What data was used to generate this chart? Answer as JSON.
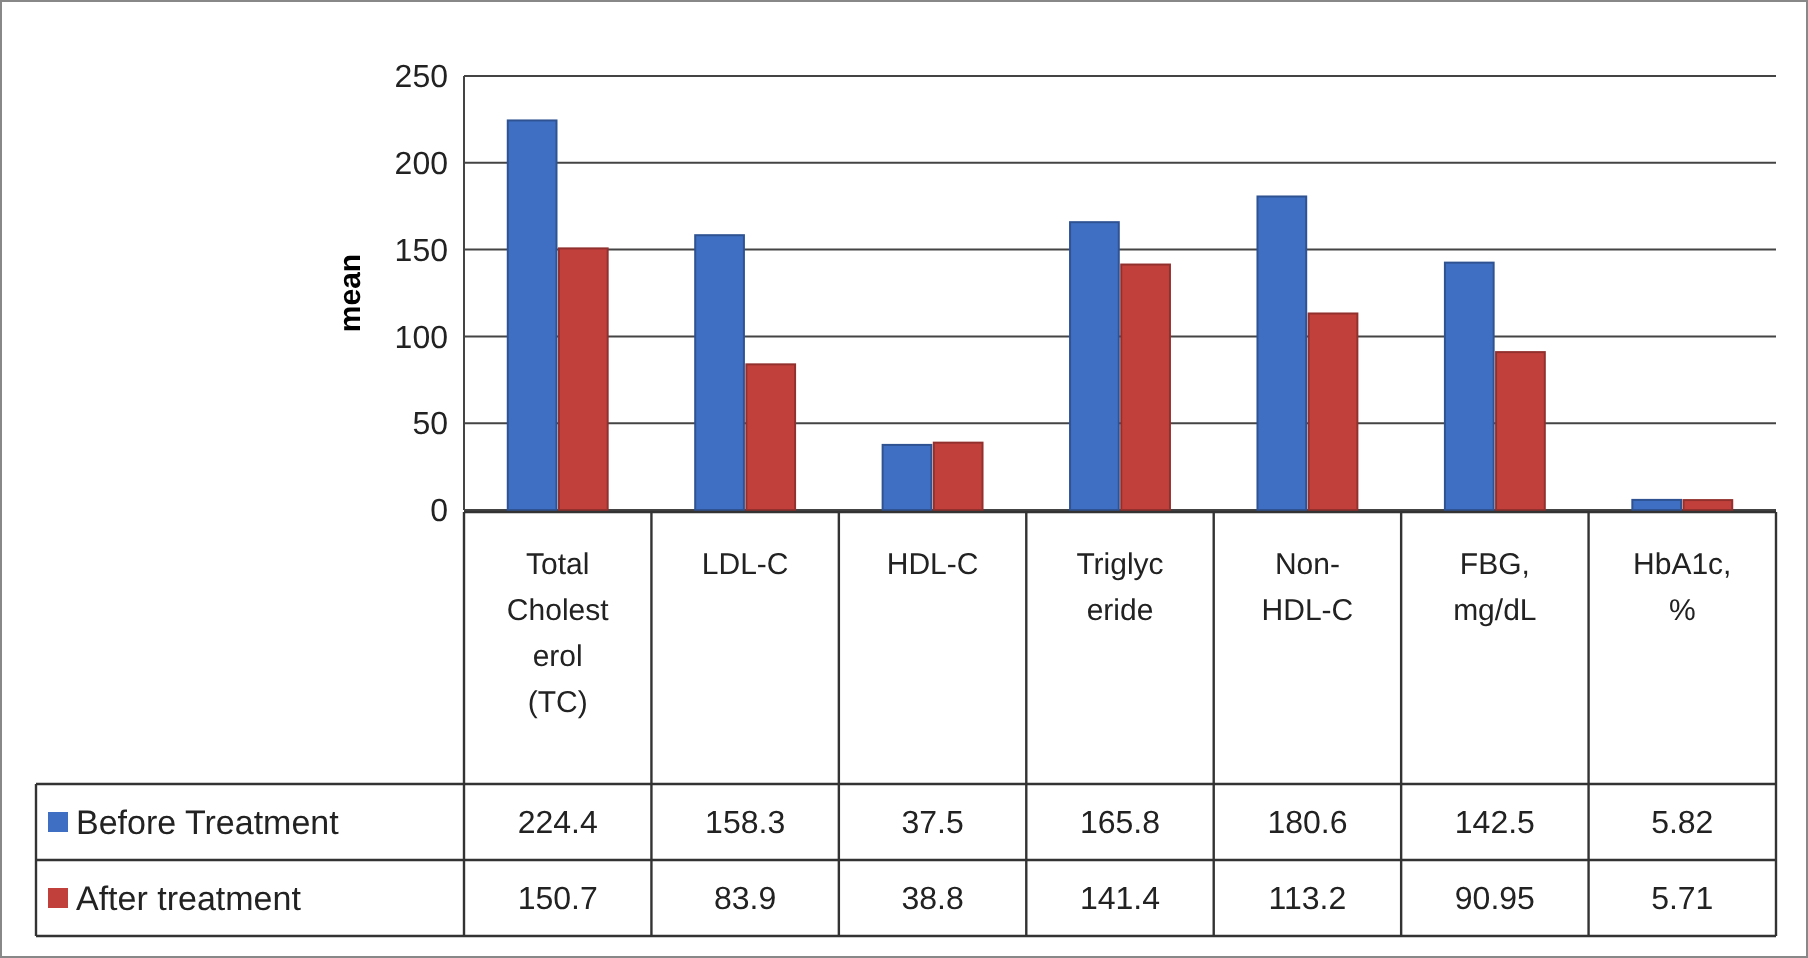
{
  "chart_data": {
    "type": "bar",
    "ylabel": "mean",
    "categories": [
      "Total Cholesterol (TC)",
      "LDL-C",
      "HDL-C",
      "Triglyceride",
      "Non-HDL-C",
      "FBG, mg/dL",
      "HbA1c, %"
    ],
    "series": [
      {
        "name": "Before Treatment",
        "color": "#3f6fc2",
        "values": [
          224.4,
          158.3,
          37.5,
          165.8,
          180.6,
          142.5,
          5.82
        ]
      },
      {
        "name": "After treatment",
        "color": "#c2403c",
        "values": [
          150.7,
          83.9,
          38.8,
          141.4,
          113.2,
          90.95,
          5.71
        ]
      }
    ],
    "ylim": [
      0,
      250
    ],
    "yticks": [
      0,
      50,
      100,
      150,
      200,
      250
    ],
    "grid": "y",
    "legend": "bottom",
    "data_labels": true
  }
}
